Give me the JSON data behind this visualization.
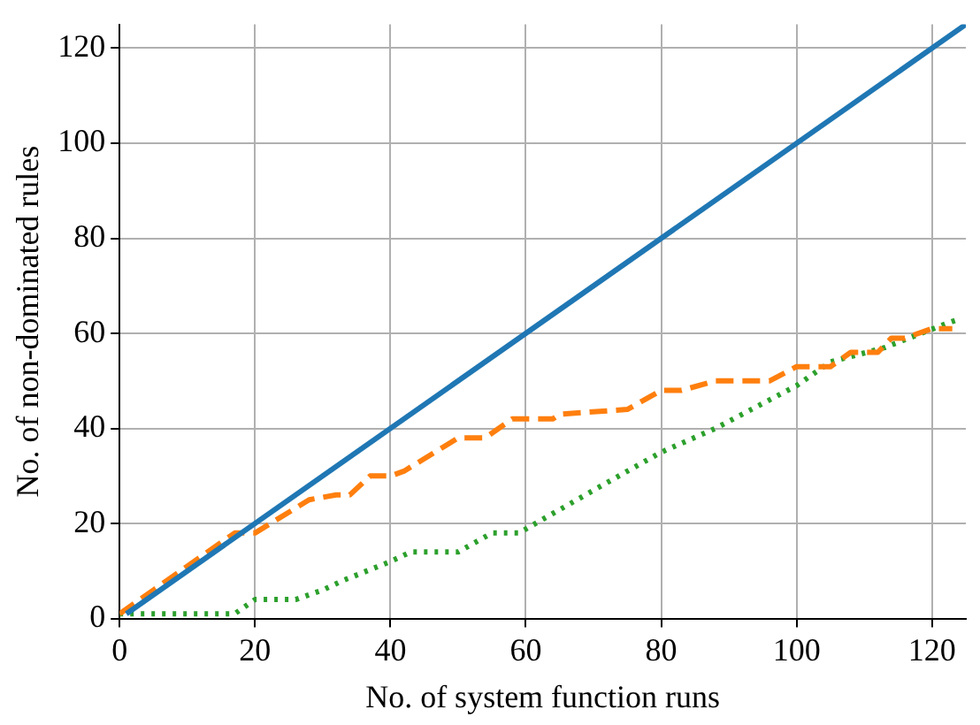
{
  "chart_data": {
    "type": "line",
    "xlabel": "No. of system function runs",
    "ylabel": "No. of non-dominated rules",
    "xlim": [
      0,
      125
    ],
    "ylim": [
      0,
      125
    ],
    "xticks": [
      0,
      20,
      40,
      60,
      80,
      100,
      120
    ],
    "yticks": [
      0,
      20,
      40,
      60,
      80,
      100,
      120
    ],
    "grid": true,
    "legend": false,
    "marker": "none",
    "series": [
      {
        "color": "#1f77b4",
        "line_style": "solid",
        "x": [
          1,
          125
        ],
        "values": [
          1,
          125
        ]
      },
      {
        "color": "#ff7f0e",
        "line_style": "dashed",
        "x": [
          0,
          5,
          10,
          17,
          20,
          28,
          32,
          34,
          37,
          40,
          42,
          50,
          54,
          58,
          60,
          64,
          65,
          75,
          80,
          83,
          88,
          96,
          100,
          105,
          108,
          112,
          114,
          116,
          120,
          123
        ],
        "values": [
          1,
          6,
          11,
          18,
          18,
          25,
          26,
          26,
          30,
          30,
          31,
          38,
          38,
          42,
          42,
          42,
          43,
          44,
          48,
          48,
          50,
          50,
          53,
          53,
          56,
          56,
          59,
          59,
          61,
          61
        ]
      },
      {
        "color": "#2ca02c",
        "line_style": "dotted",
        "x": [
          0,
          17,
          20,
          26,
          30,
          33,
          40,
          43,
          50,
          55,
          59,
          70,
          80,
          88,
          100,
          105,
          113,
          122,
          124
        ],
        "values": [
          1,
          1,
          4,
          4,
          6,
          8,
          12,
          14,
          14,
          18,
          18,
          27,
          35,
          40,
          49,
          54,
          57,
          62,
          63
        ]
      }
    ]
  }
}
